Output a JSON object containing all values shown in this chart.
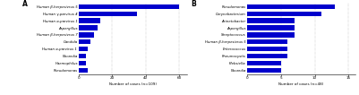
{
  "panel_a": {
    "label": "A",
    "xlabel": "Number of cases (n=109)",
    "xlim": [
      0,
      65
    ],
    "xticks": [
      0,
      20,
      40,
      60
    ],
    "categories": [
      "Pseudomonas",
      "Haemophilus",
      "Nocardia",
      "Human α-parvirus 1 ",
      "Candida",
      "Human β-herpesivrus 7",
      "Aspergillus",
      "Human α-parvirus 1",
      "Human γ-parvirus 4",
      "Human β-herpesivrus 5"
    ],
    "values": [
      5,
      4,
      4,
      5,
      7,
      9,
      11,
      13,
      35,
      60
    ],
    "bar_color": "#0000cc"
  },
  "panel_b": {
    "label": "B",
    "xlabel": "Number of cases (n=48)",
    "xlim": [
      0,
      16
    ],
    "xticks": [
      0,
      5,
      10,
      15
    ],
    "categories": [
      "Nocardia",
      "Klebsiella",
      "Pneumocystis",
      "Enterococcus",
      "Human β-herpesivrus 5",
      "Streptococcus",
      "Aspergillus",
      "Acinetobacter",
      "Corynebacterium",
      "Pseudomonas"
    ],
    "values": [
      5,
      5,
      6,
      6,
      6,
      7,
      7,
      7,
      11,
      13
    ],
    "bar_color": "#0000cc"
  }
}
